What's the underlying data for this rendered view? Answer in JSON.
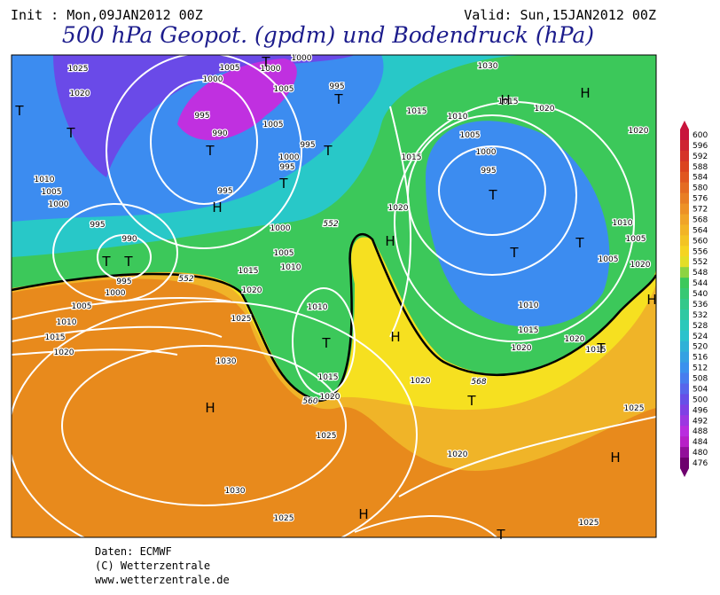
{
  "header": {
    "init": "Init : Mon,09JAN2012 00Z",
    "valid": "Valid: Sun,15JAN2012 00Z",
    "title": "500 hPa Geopot. (gpdm) und Bodendruck (hPa)"
  },
  "colorbar": {
    "levels": [
      600,
      596,
      592,
      588,
      584,
      580,
      576,
      572,
      568,
      564,
      560,
      556,
      552,
      548,
      544,
      540,
      536,
      532,
      528,
      524,
      520,
      516,
      512,
      508,
      504,
      500,
      496,
      492,
      488,
      484,
      480,
      476
    ]
  },
  "map": {
    "isobar_labels": [
      "1025",
      "1020",
      "1005",
      "1000",
      "1000",
      "1000",
      "995",
      "1005",
      "995",
      "990",
      "1005",
      "995",
      "1000",
      "995",
      "995",
      "1010",
      "1005",
      "1000",
      "995",
      "990",
      "995",
      "1000",
      "1005",
      "1010",
      "1015",
      "1020",
      "1000",
      "1005",
      "1010",
      "1015",
      "1020",
      "1025",
      "1030",
      "1010",
      "1015",
      "1020",
      "1025",
      "1030",
      "1025",
      "1015",
      "1010",
      "1005",
      "1000",
      "995",
      "1015",
      "1020",
      "1030",
      "1015",
      "1020",
      "1020",
      "1010",
      "1005",
      "1005",
      "1020",
      "1010",
      "1015",
      "1020",
      "1020",
      "1015",
      "1020",
      "1020",
      "1025",
      "1025"
    ],
    "pressure_centers": [
      "H",
      "H",
      "H",
      "H",
      "H",
      "H",
      "H",
      "H",
      "H",
      "T",
      "T",
      "T",
      "T",
      "T",
      "T",
      "T",
      "T",
      "T",
      "T",
      "T",
      "T",
      "T",
      "T",
      "T",
      "T"
    ],
    "height_labels": [
      "552",
      "552",
      "568",
      "560"
    ]
  },
  "footer": {
    "source": "Daten: ECMWF",
    "copyright": "(C) Wetterzentrale",
    "url": "www.wetterzentrale.de"
  }
}
